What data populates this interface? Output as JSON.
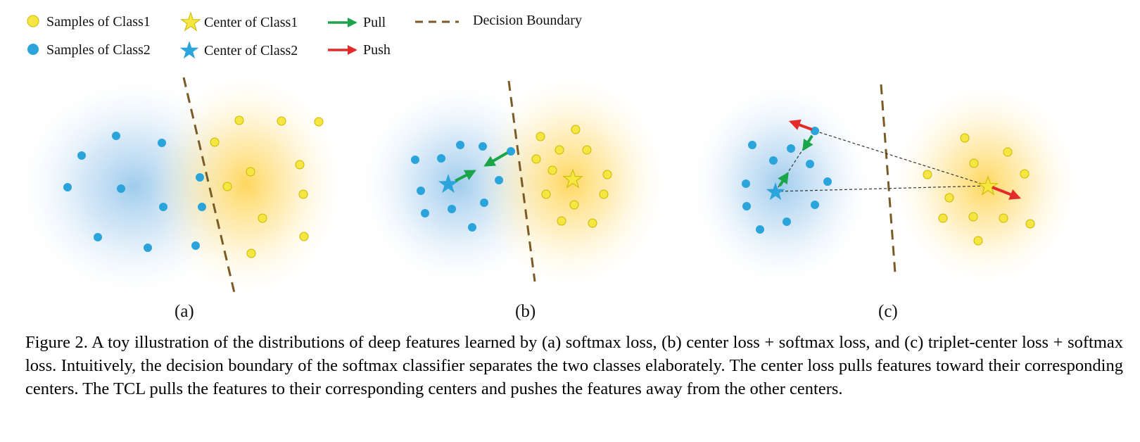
{
  "legend": {
    "samples_class1": "Samples of Class1",
    "samples_class2": "Samples of Class2",
    "center_class1": "Center of Class1",
    "center_class2": "Center of Class2",
    "pull": "Pull",
    "push": "Push",
    "decision_boundary": "Decision Boundary"
  },
  "panels": {
    "a": "(a)",
    "b": "(b)",
    "c": "(c)"
  },
  "caption": "Figure 2. A toy illustration of the distributions of deep features learned by (a) softmax loss, (b) center loss + softmax loss, and (c) triplet-center loss + softmax loss. Intuitively, the decision boundary of the softmax classifier separates the two classes elaborately. The center loss pulls features toward their corresponding centers. The TCL pulls the features to their corresponding centers and pushes the features away from the other centers.",
  "colors": {
    "class1": "#f5e642",
    "class2": "#2aa4db",
    "pull": "#1aa54a",
    "push": "#e32b2b",
    "boundary": "#7a5a26"
  }
}
